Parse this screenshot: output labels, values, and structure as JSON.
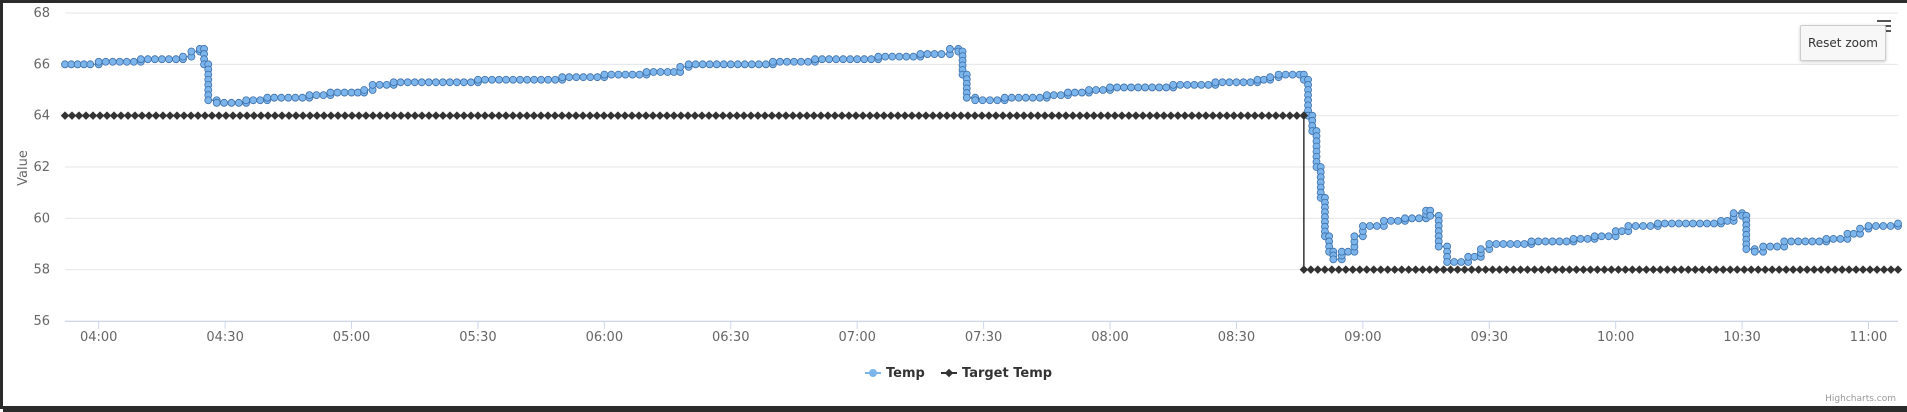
{
  "chart": {
    "reset_zoom_label": "Reset zoom",
    "credits": "Highcharts.com",
    "menu_icon": "hamburger-menu-icon"
  },
  "chart_data": {
    "type": "line",
    "title": "",
    "xlabel": "",
    "ylabel": "Value",
    "ylim": [
      56,
      68
    ],
    "yticks": [
      56,
      58,
      60,
      62,
      64,
      66,
      68
    ],
    "xlim": [
      "03:52",
      "11:07"
    ],
    "xticks": [
      "04:00",
      "04:30",
      "05:00",
      "05:30",
      "06:00",
      "06:30",
      "07:00",
      "07:30",
      "08:00",
      "08:30",
      "09:00",
      "09:30",
      "10:00",
      "10:30",
      "11:00"
    ],
    "grid": "horizontal",
    "legend": "bottom-center",
    "series": [
      {
        "name": "Temp",
        "color": "#7cb5ec",
        "marker": "circle",
        "points": [
          [
            "03:52",
            66.0
          ],
          [
            "03:58",
            66.0
          ],
          [
            "04:00",
            66.1
          ],
          [
            "04:05",
            66.1
          ],
          [
            "04:10",
            66.2
          ],
          [
            "04:15",
            66.2
          ],
          [
            "04:20",
            66.3
          ],
          [
            "04:22",
            66.5
          ],
          [
            "04:24",
            66.6
          ],
          [
            "04:25",
            66.0
          ],
          [
            "04:26",
            64.6
          ],
          [
            "04:28",
            64.5
          ],
          [
            "04:35",
            64.6
          ],
          [
            "04:40",
            64.7
          ],
          [
            "04:50",
            64.8
          ],
          [
            "04:55",
            64.9
          ],
          [
            "05:00",
            64.9
          ],
          [
            "05:03",
            65.0
          ],
          [
            "05:05",
            65.2
          ],
          [
            "05:10",
            65.3
          ],
          [
            "05:20",
            65.3
          ],
          [
            "05:30",
            65.4
          ],
          [
            "05:40",
            65.4
          ],
          [
            "05:50",
            65.5
          ],
          [
            "06:00",
            65.6
          ],
          [
            "06:05",
            65.6
          ],
          [
            "06:10",
            65.7
          ],
          [
            "06:15",
            65.7
          ],
          [
            "06:18",
            65.9
          ],
          [
            "06:20",
            66.0
          ],
          [
            "06:30",
            66.0
          ],
          [
            "06:40",
            66.1
          ],
          [
            "06:50",
            66.2
          ],
          [
            "07:00",
            66.2
          ],
          [
            "07:05",
            66.3
          ],
          [
            "07:10",
            66.3
          ],
          [
            "07:15",
            66.4
          ],
          [
            "07:20",
            66.4
          ],
          [
            "07:22",
            66.6
          ],
          [
            "07:24",
            66.5
          ],
          [
            "07:25",
            65.6
          ],
          [
            "07:26",
            64.7
          ],
          [
            "07:28",
            64.6
          ],
          [
            "07:35",
            64.7
          ],
          [
            "07:45",
            64.8
          ],
          [
            "07:50",
            64.9
          ],
          [
            "07:55",
            65.0
          ],
          [
            "08:00",
            65.1
          ],
          [
            "08:10",
            65.1
          ],
          [
            "08:15",
            65.2
          ],
          [
            "08:25",
            65.3
          ],
          [
            "08:35",
            65.4
          ],
          [
            "08:38",
            65.5
          ],
          [
            "08:40",
            65.6
          ],
          [
            "08:45",
            65.6
          ],
          [
            "08:46",
            65.4
          ],
          [
            "08:47",
            64.0
          ],
          [
            "08:48",
            63.4
          ],
          [
            "08:49",
            62.0
          ],
          [
            "08:50",
            60.8
          ],
          [
            "08:51",
            59.3
          ],
          [
            "08:52",
            58.7
          ],
          [
            "08:53",
            58.4
          ],
          [
            "08:55",
            58.7
          ],
          [
            "08:58",
            59.3
          ],
          [
            "09:00",
            59.7
          ],
          [
            "09:05",
            59.9
          ],
          [
            "09:10",
            60.0
          ],
          [
            "09:15",
            60.3
          ],
          [
            "09:16",
            60.1
          ],
          [
            "09:18",
            58.9
          ],
          [
            "09:20",
            58.3
          ],
          [
            "09:25",
            58.5
          ],
          [
            "09:28",
            58.8
          ],
          [
            "09:30",
            59.0
          ],
          [
            "09:40",
            59.1
          ],
          [
            "09:50",
            59.2
          ],
          [
            "09:55",
            59.3
          ],
          [
            "10:00",
            59.5
          ],
          [
            "10:03",
            59.7
          ],
          [
            "10:10",
            59.8
          ],
          [
            "10:20",
            59.8
          ],
          [
            "10:25",
            59.9
          ],
          [
            "10:28",
            60.2
          ],
          [
            "10:30",
            60.1
          ],
          [
            "10:31",
            58.8
          ],
          [
            "10:33",
            58.7
          ],
          [
            "10:35",
            58.9
          ],
          [
            "10:40",
            59.1
          ],
          [
            "10:50",
            59.2
          ],
          [
            "10:55",
            59.4
          ],
          [
            "10:58",
            59.6
          ],
          [
            "11:00",
            59.7
          ],
          [
            "11:07",
            59.8
          ]
        ]
      },
      {
        "name": "Target Temp",
        "color": "#333333",
        "marker": "diamond",
        "points": [
          [
            "03:52",
            64.0
          ],
          [
            "08:46",
            64.0
          ],
          [
            "08:46",
            58.0
          ],
          [
            "11:07",
            58.0
          ]
        ]
      }
    ]
  }
}
